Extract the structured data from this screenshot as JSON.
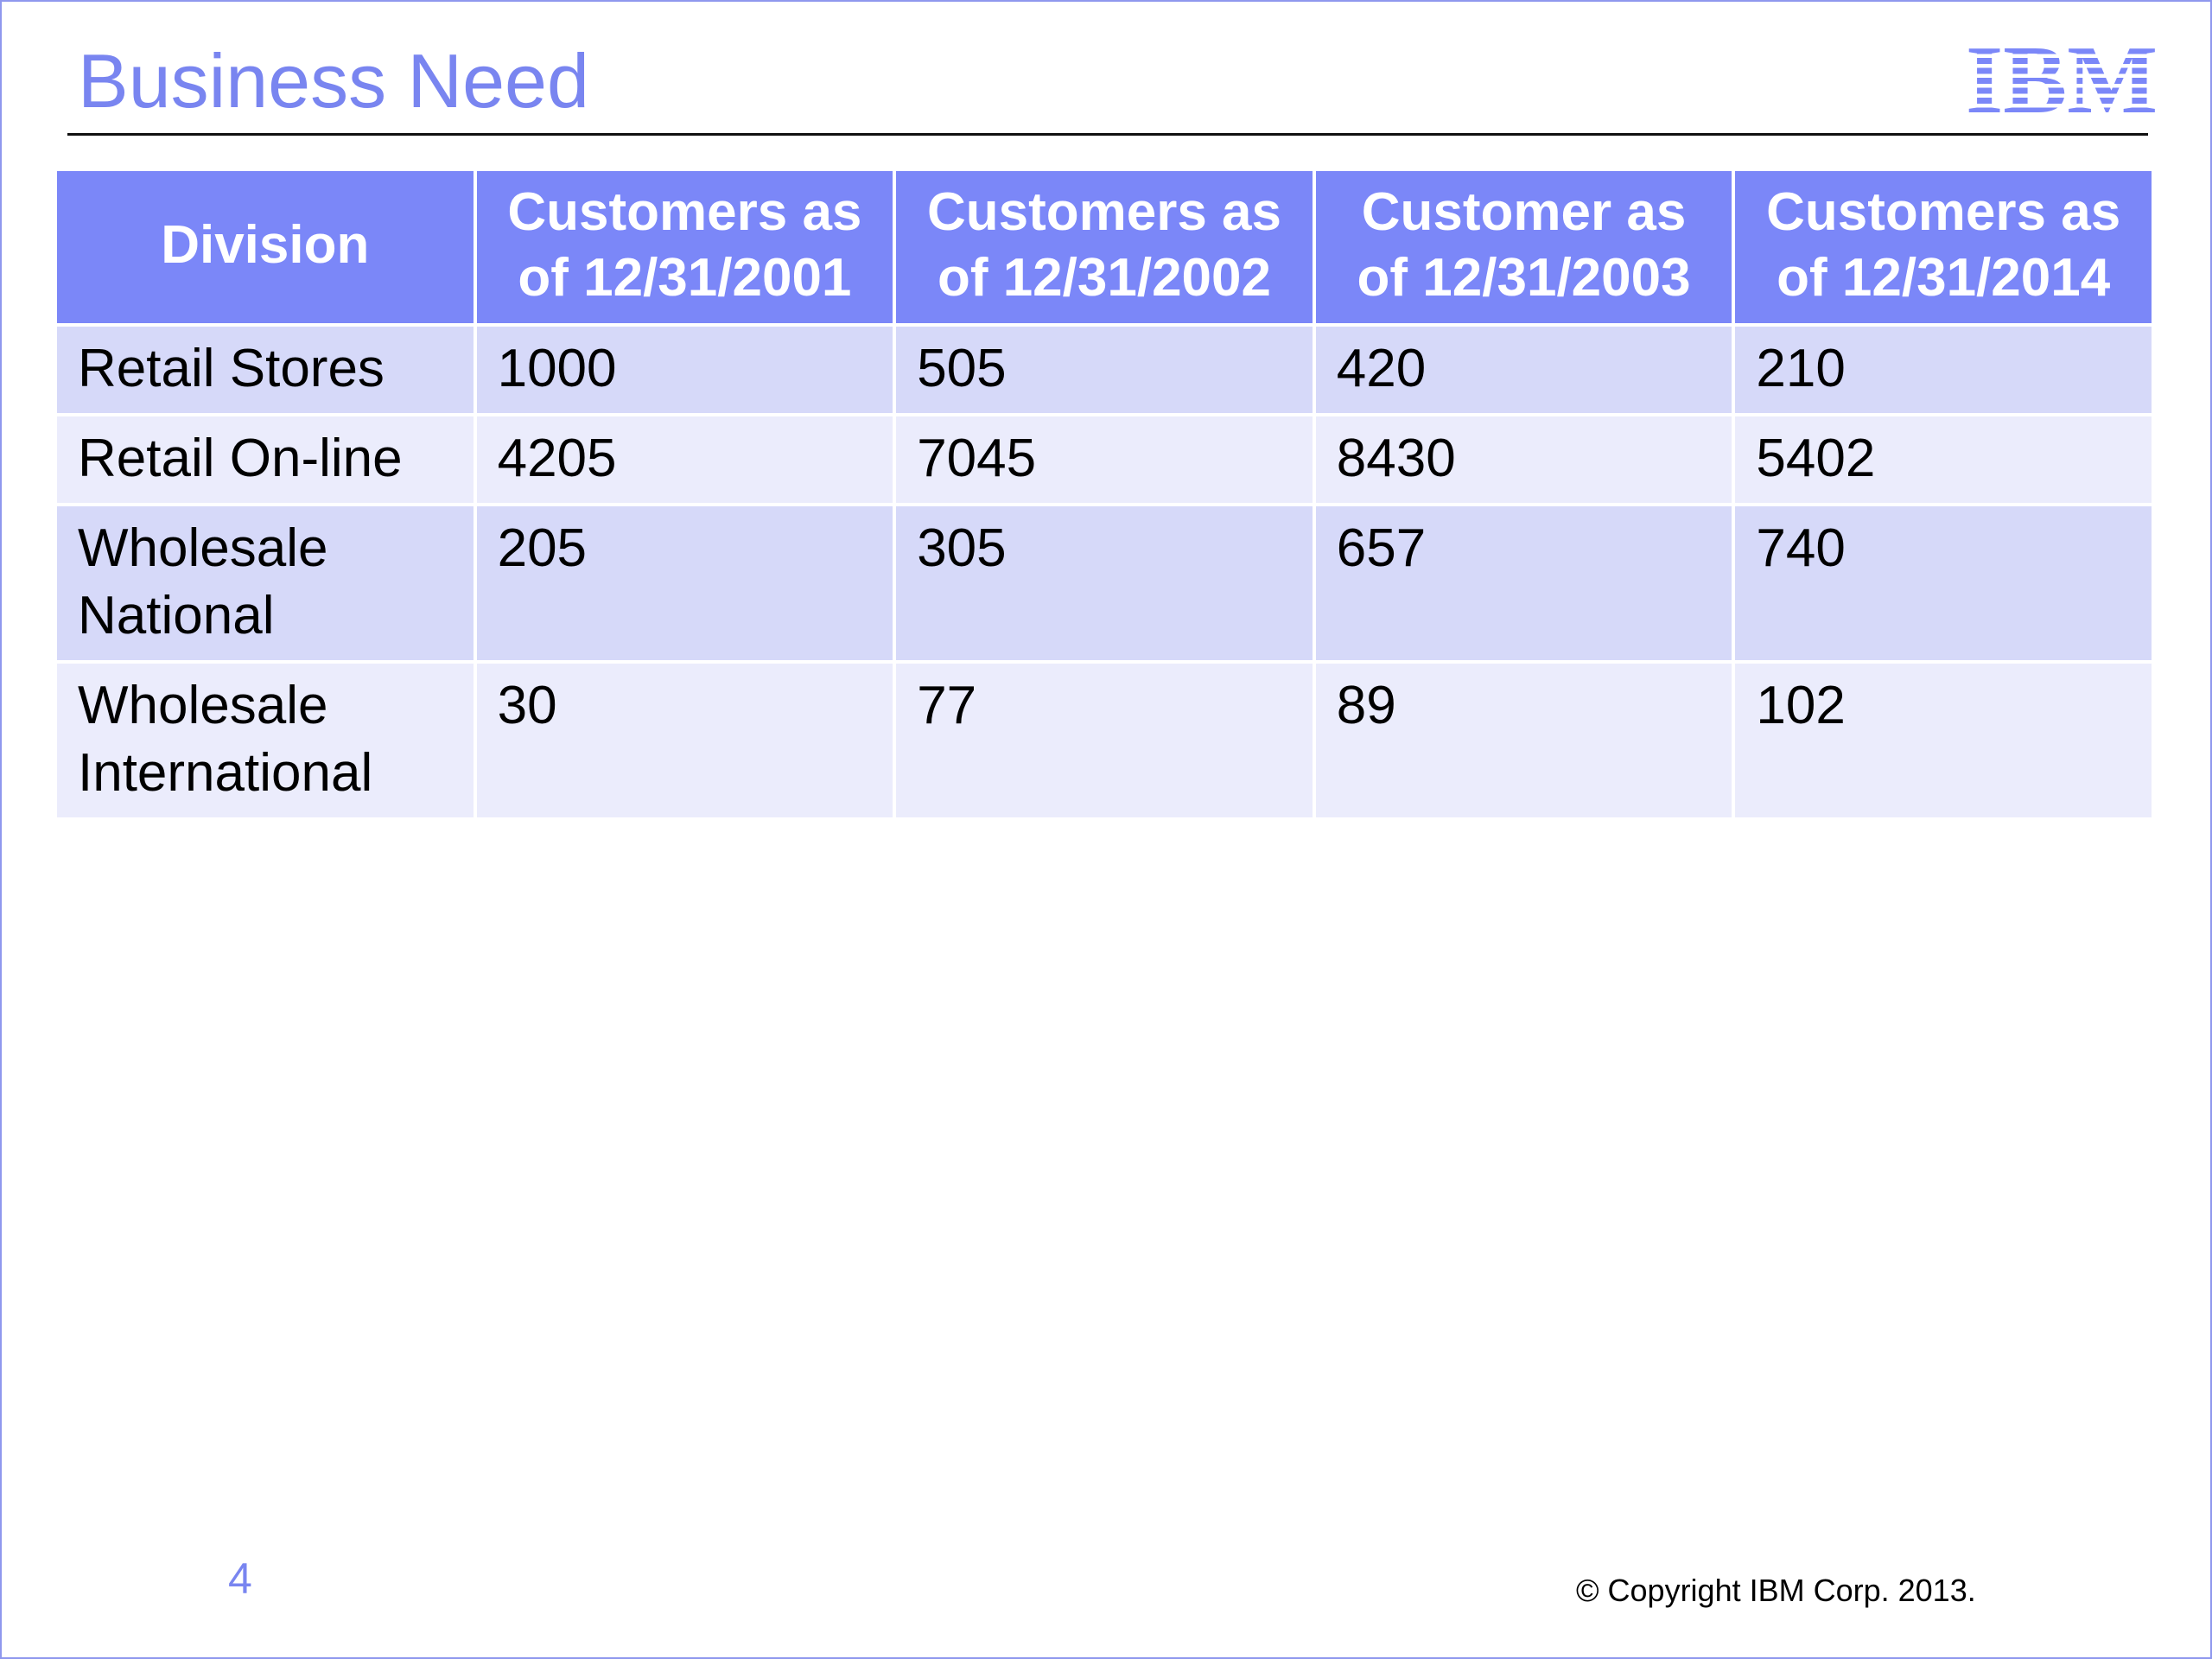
{
  "slide": {
    "title": "Business Need",
    "logo_text": "IBM",
    "page_number": "4",
    "copyright": "© Copyright IBM Corp. 2013."
  },
  "colors": {
    "title": "#7985f0",
    "header_bg": "#7b87f8",
    "row_dark": "#d6d9f9",
    "row_light": "#ebecfc"
  },
  "table": {
    "headers": [
      [
        "Division"
      ],
      [
        "Customers as",
        "of 12/31/2001"
      ],
      [
        "Customers as",
        "of 12/31/2002"
      ],
      [
        "Customer as",
        "of 12/31/2003"
      ],
      [
        "Customers as",
        "of 12/31/2014"
      ]
    ],
    "rows": [
      {
        "division": [
          "Retail Stores"
        ],
        "values": [
          "1000",
          "505",
          "420",
          "210"
        ]
      },
      {
        "division": [
          "Retail On-line"
        ],
        "values": [
          "4205",
          "7045",
          "8430",
          "5402"
        ]
      },
      {
        "division": [
          "Wholesale",
          "National"
        ],
        "values": [
          "205",
          "305",
          "657",
          "740"
        ]
      },
      {
        "division": [
          "Wholesale",
          "International"
        ],
        "values": [
          "30",
          "77",
          "89",
          "102"
        ]
      }
    ]
  }
}
